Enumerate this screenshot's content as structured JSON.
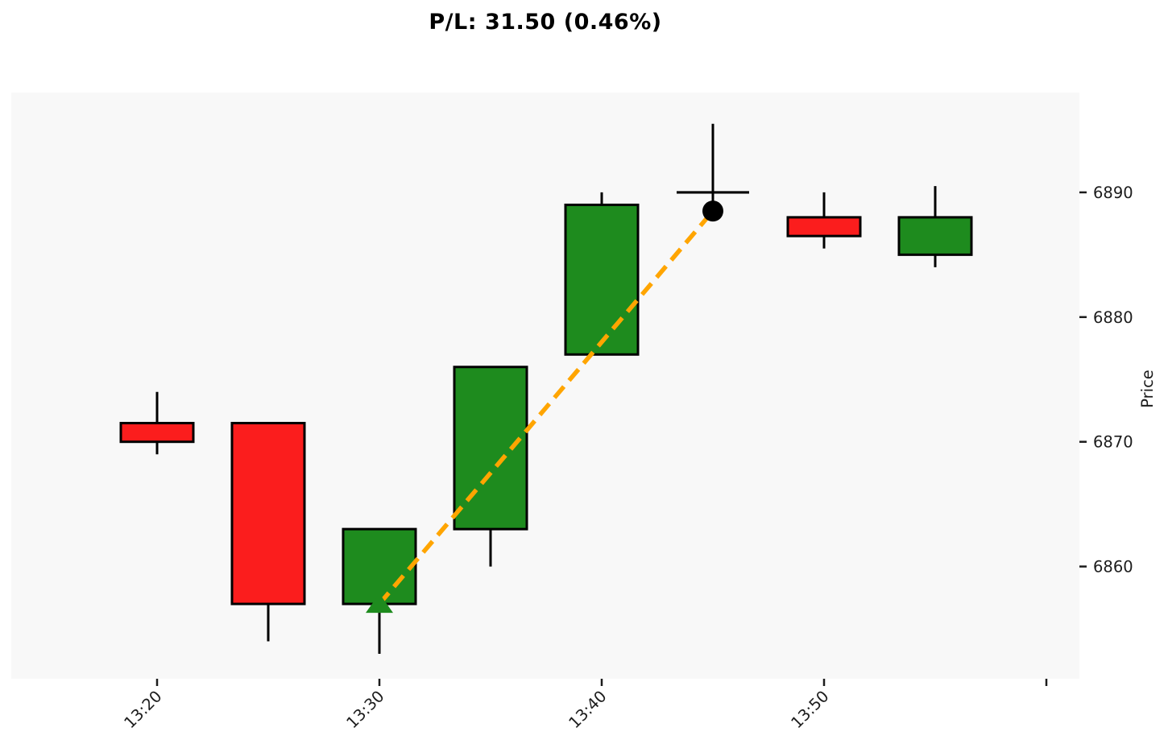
{
  "chart_data": {
    "type": "candlestick",
    "title": "P/L: 31.50 (0.46%)",
    "ylabel": "Price",
    "xlabel": "",
    "y_ticks": [
      "6860",
      "6870",
      "6880",
      "6890"
    ],
    "ylim": [
      6851,
      6898
    ],
    "x_tick_labels": [
      "13:20",
      "13:30",
      "13:40",
      "13:50"
    ],
    "grid": false,
    "legend": "none",
    "candles": [
      {
        "time": "13:20",
        "open": 6871.5,
        "high": 6874.0,
        "low": 6869.0,
        "close": 6870.0,
        "direction": "down"
      },
      {
        "time": "13:25",
        "open": 6871.5,
        "high": 6871.5,
        "low": 6854.0,
        "close": 6857.0,
        "direction": "down"
      },
      {
        "time": "13:30",
        "open": 6857.0,
        "high": 6863.0,
        "low": 6853.0,
        "close": 6863.0,
        "direction": "up"
      },
      {
        "time": "13:35",
        "open": 6863.0,
        "high": 6876.0,
        "low": 6860.0,
        "close": 6876.0,
        "direction": "up"
      },
      {
        "time": "13:40",
        "open": 6877.0,
        "high": 6890.0,
        "low": 6877.0,
        "close": 6889.0,
        "direction": "up"
      },
      {
        "time": "13:45",
        "open": 6890.0,
        "high": 6895.5,
        "low": 6888.0,
        "close": 6890.0,
        "direction": "doji"
      },
      {
        "time": "13:50",
        "open": 6888.0,
        "high": 6890.0,
        "low": 6885.5,
        "close": 6886.5,
        "direction": "down"
      },
      {
        "time": "13:55",
        "open": 6885.0,
        "high": 6890.5,
        "low": 6884.0,
        "close": 6888.0,
        "direction": "up"
      }
    ],
    "trade": {
      "entry_time": "13:30",
      "entry_price": 6857.0,
      "entry_marker": "triangle-up",
      "exit_time": "13:45",
      "exit_price": 6888.5,
      "exit_marker": "circle",
      "pl": "31.50",
      "pl_pct": "0.46%",
      "line_style": "dashed"
    },
    "colors": {
      "up": "#1e8b1e",
      "down": "#fb1d1d",
      "doji": "#000000",
      "candle_edge": "#000000",
      "trade_line": "#ffa500",
      "entry_marker": "#1e8b1e",
      "exit_marker": "#000000",
      "plot_bg": "#f8f8f8",
      "figure_bg": "#ffffff",
      "text": "#1c1c1c"
    }
  }
}
